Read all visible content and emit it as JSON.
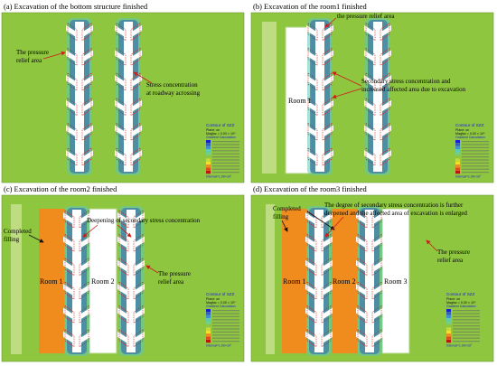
{
  "panels": [
    {
      "title": "(a) Excavation of the bottom structure finished",
      "annotations": [
        "The pressure",
        "relief area",
        "Stress concentration",
        "at roadway acrossing"
      ],
      "rooms": []
    },
    {
      "title": "(b) Excavation of the room1 finished",
      "annotations": [
        "the pressure relief area",
        "Secondary stress concentration and",
        "increased affected area due to excavation"
      ],
      "rooms": [
        "Room 1"
      ]
    },
    {
      "title": "(c) Excavation of the room2 finished",
      "annotations": [
        "Completed",
        "filling",
        "Deepening of secondary stress concentration",
        "The pressure",
        "relief area"
      ],
      "rooms": [
        "Room 1",
        "Room 2"
      ]
    },
    {
      "title": "(d) Excavation of the room3 finished",
      "annotations": [
        "Completed",
        "filling",
        "The degree of secondary stress concentration is further",
        "deepened and the affected area of excavation is enlarged",
        "The pressure",
        "relief area"
      ],
      "rooms": [
        "Room 1",
        "Room 2",
        "Room 3"
      ]
    }
  ],
  "legend": {
    "title": "Contour of SZZ",
    "plane": "Plane: on",
    "magfac": "Magfac = 0.00 × 10⁰",
    "calc": "Gradient Calculation",
    "interval": "Interval=1.00×10⁷"
  },
  "colors": {
    "background_field": "#8ec63f",
    "tunnel": "#ffffff",
    "filling": "#f08c1e",
    "arrow": "#d11a1a",
    "dash": "#d11a1a"
  }
}
